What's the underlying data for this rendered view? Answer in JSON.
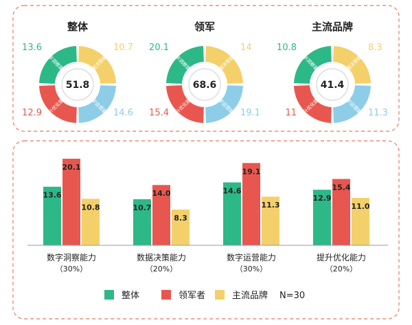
{
  "colors": {
    "overall": "#2DB887",
    "leader": "#E8574F",
    "mainstream": "#F4D06B",
    "ops": "#8ECDE8",
    "frame": "#EE8B78",
    "text": "#222222"
  },
  "donuts": [
    {
      "title": "整体",
      "center": "51.8",
      "values": {
        "insight": "13.6",
        "decision": "10.7",
        "ops": "14.6",
        "optimize": "12.9"
      }
    },
    {
      "title": "领军",
      "center": "68.6",
      "values": {
        "insight": "20.1",
        "decision": "14",
        "ops": "19.1",
        "optimize": "15.4"
      }
    },
    {
      "title": "主流品牌",
      "center": "41.4",
      "values": {
        "insight": "10.8",
        "decision": "8.3",
        "ops": "11.3",
        "optimize": "11"
      }
    }
  ],
  "segment_labels": {
    "insight": "数字洞察能力",
    "decision": "数据决策能力",
    "ops": "数字运营能力",
    "optimize": "提升优化能力"
  },
  "legend": {
    "overall": "整体",
    "leader": "领军者",
    "mainstream": "主流品牌",
    "note": "N=30"
  },
  "chart_data": {
    "type": "bar",
    "categories": [
      "数字洞察能力",
      "数据决策能力",
      "数字运营能力",
      "提升优化能力"
    ],
    "category_weights": [
      "（30%）",
      "（20%）",
      "（30%）",
      "（20%）"
    ],
    "series": [
      {
        "name": "整体",
        "values": [
          13.6,
          10.7,
          14.6,
          12.9
        ]
      },
      {
        "name": "领军者",
        "values": [
          20.1,
          14.0,
          19.1,
          15.4
        ]
      },
      {
        "name": "主流品牌",
        "values": [
          10.8,
          8.3,
          11.3,
          11.0
        ]
      }
    ],
    "value_labels": [
      [
        "13.6",
        "10.7",
        "14.6",
        "12.9"
      ],
      [
        "20.1",
        "14.0",
        "19.1",
        "15.4"
      ],
      [
        "10.8",
        "8.3",
        "11.3",
        "11.0"
      ]
    ],
    "ylim": [
      0,
      20.1
    ],
    "grid": false,
    "legend": "bottom"
  }
}
